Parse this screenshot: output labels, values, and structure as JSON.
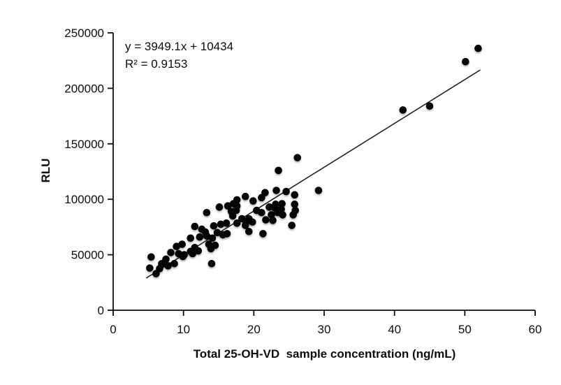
{
  "figure": {
    "background": "#ffffff",
    "foreground": "#0d0d0d"
  },
  "annotation": {
    "equation": "y = 3949.1x + 10434",
    "r_squared": "R² = 0.9153"
  },
  "chart_data": {
    "type": "scatter",
    "title": "",
    "xlabel": "Total 25-OH-VD  sample concentration (ng/mL)",
    "ylabel": "RLU",
    "xlim": [
      0,
      60
    ],
    "ylim": [
      0,
      250000
    ],
    "xticks": [
      0,
      10,
      20,
      30,
      40,
      50,
      60
    ],
    "yticks": [
      0,
      50000,
      100000,
      150000,
      200000,
      250000
    ],
    "grid": false,
    "legend_position": "none",
    "marker_color": "#050505",
    "marker_radius": 5.3,
    "axis_color": "#0d0d0d",
    "trendline": {
      "slope": 3949.1,
      "intercept": 10434,
      "r_squared": 0.9153,
      "x_start": 4.7,
      "x_end": 52.2,
      "color": "#23232b"
    },
    "points": [
      [
        5.2,
        38000
      ],
      [
        5.4,
        48000
      ],
      [
        6.1,
        33000
      ],
      [
        6.6,
        37500
      ],
      [
        6.9,
        42000
      ],
      [
        7.5,
        46000
      ],
      [
        7.8,
        40000
      ],
      [
        8.2,
        52000
      ],
      [
        8.7,
        42000
      ],
      [
        9.0,
        57500
      ],
      [
        9.3,
        51000
      ],
      [
        9.8,
        59500
      ],
      [
        9.9,
        48500
      ],
      [
        10.1,
        50000
      ],
      [
        11.0,
        53000
      ],
      [
        11.0,
        65000
      ],
      [
        11.3,
        51000
      ],
      [
        11.6,
        56500
      ],
      [
        11.6,
        75500
      ],
      [
        12.1,
        53500
      ],
      [
        12.3,
        66000
      ],
      [
        12.6,
        73000
      ],
      [
        13.1,
        70500
      ],
      [
        13.3,
        67000
      ],
      [
        13.3,
        88000
      ],
      [
        13.6,
        59500
      ],
      [
        13.9,
        55500
      ],
      [
        14.0,
        42000
      ],
      [
        14.1,
        65000
      ],
      [
        14.3,
        76000
      ],
      [
        14.5,
        58500
      ],
      [
        14.8,
        70000
      ],
      [
        15.1,
        93000
      ],
      [
        15.3,
        77500
      ],
      [
        15.6,
        68000
      ],
      [
        16.1,
        78500
      ],
      [
        16.2,
        69000
      ],
      [
        16.3,
        94000
      ],
      [
        16.8,
        89000
      ],
      [
        17.0,
        85000
      ],
      [
        17.1,
        96000
      ],
      [
        17.5,
        90000
      ],
      [
        17.6,
        78500
      ],
      [
        17.6,
        94000
      ],
      [
        17.6,
        99500
      ],
      [
        18.3,
        82500
      ],
      [
        18.8,
        76500
      ],
      [
        18.8,
        102500
      ],
      [
        18.9,
        79500
      ],
      [
        19.3,
        71000
      ],
      [
        19.3,
        82500
      ],
      [
        19.8,
        79500
      ],
      [
        19.9,
        98500
      ],
      [
        20.4,
        90000
      ],
      [
        21.1,
        88000
      ],
      [
        21.1,
        101500
      ],
      [
        21.3,
        69000
      ],
      [
        21.6,
        106000
      ],
      [
        21.7,
        81500
      ],
      [
        22.2,
        93000
      ],
      [
        22.5,
        86000
      ],
      [
        22.7,
        81000
      ],
      [
        23.0,
        92000
      ],
      [
        23.1,
        95500
      ],
      [
        23.2,
        108000
      ],
      [
        23.4,
        88000
      ],
      [
        23.5,
        126000
      ],
      [
        23.9,
        91000
      ],
      [
        24.0,
        96000
      ],
      [
        24.1,
        86000
      ],
      [
        24.6,
        107000
      ],
      [
        25.4,
        76500
      ],
      [
        25.6,
        86000
      ],
      [
        25.8,
        104000
      ],
      [
        25.8,
        95500
      ],
      [
        25.9,
        90000
      ],
      [
        26.2,
        137500
      ],
      [
        29.2,
        108000
      ],
      [
        41.2,
        180500
      ],
      [
        45.0,
        184000
      ],
      [
        50.1,
        224000
      ],
      [
        51.9,
        236000
      ]
    ]
  }
}
